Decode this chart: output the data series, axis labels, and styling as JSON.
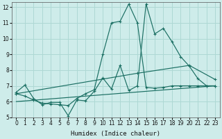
{
  "xlabel": "Humidex (Indice chaleur)",
  "ylabel": "",
  "bg_color": "#ceecea",
  "grid_color": "#aed8d4",
  "line_color": "#1a6e62",
  "xlim": [
    -0.5,
    23.5
  ],
  "ylim": [
    5,
    12.3
  ],
  "xticks": [
    0,
    1,
    2,
    3,
    4,
    5,
    6,
    7,
    8,
    9,
    10,
    11,
    12,
    13,
    14,
    15,
    16,
    17,
    18,
    19,
    20,
    21,
    22,
    23
  ],
  "yticks": [
    5,
    6,
    7,
    8,
    9,
    10,
    11,
    12
  ],
  "series": [
    {
      "x": [
        0,
        1,
        2,
        3,
        4,
        5,
        6,
        7,
        8,
        9,
        10,
        11,
        12,
        13,
        14,
        15,
        16,
        17,
        18,
        19,
        20,
        21,
        22,
        23
      ],
      "y": [
        6.5,
        6.35,
        6.1,
        5.9,
        5.85,
        5.8,
        5.75,
        6.2,
        6.5,
        6.75,
        9.0,
        11.0,
        11.1,
        12.2,
        11.0,
        6.9,
        6.85,
        6.9,
        7.0,
        7.0,
        7.0,
        7.0,
        7.0,
        7.0
      ],
      "marker": true
    },
    {
      "x": [
        0,
        1,
        2,
        3,
        4,
        5,
        6,
        7,
        8,
        9,
        10,
        11,
        12,
        13,
        14,
        15,
        16,
        17,
        18,
        19,
        20,
        21,
        22,
        23
      ],
      "y": [
        6.6,
        7.05,
        6.2,
        5.8,
        5.95,
        5.95,
        5.1,
        6.1,
        6.05,
        6.65,
        7.5,
        6.8,
        8.3,
        6.7,
        7.0,
        12.2,
        10.3,
        10.65,
        9.8,
        8.85,
        8.25,
        7.45,
        7.0,
        7.0
      ],
      "marker": true
    },
    {
      "x": [
        0,
        14,
        20,
        23
      ],
      "y": [
        6.5,
        7.8,
        8.3,
        7.4
      ],
      "marker": true
    },
    {
      "x": [
        0,
        23
      ],
      "y": [
        6.0,
        7.0
      ],
      "marker": false
    }
  ]
}
